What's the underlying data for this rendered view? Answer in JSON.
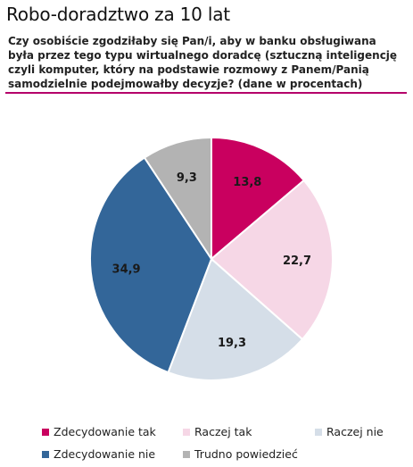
{
  "title": "Robo-doradztwo za 10 lat",
  "subtitle": "Czy osobiście zgodziłaby się Pan/i, aby w banku obsługiwana była przez tego typu wirtualnego doradcę (sztuczną inteligencję czyli komputer, który na podstawie rozmowy z Panem/Panią samodzielnie podejmowałby decyzje? (dane w procentach)",
  "chart_data": {
    "type": "pie",
    "title": "Robo-doradztwo za 10 lat",
    "categories": [
      "Zdecydowanie tak",
      "Raczej tak",
      "Raczej nie",
      "Zdecydowanie nie",
      "Trudno powiedzieć"
    ],
    "values": [
      13.8,
      22.7,
      19.3,
      34.9,
      9.3
    ],
    "labels": [
      "13,8",
      "22,7",
      "19,3",
      "34,9",
      "9,3"
    ],
    "colors": [
      "#c9005f",
      "#f6d7e6",
      "#d5dee8",
      "#336699",
      "#b3b3b3"
    ],
    "start_angle": "12 o'clock",
    "direction": "clockwise",
    "legend_position": "bottom"
  },
  "legend": [
    {
      "label": "Zdecydowanie tak",
      "color": "#c9005f"
    },
    {
      "label": "Raczej tak",
      "color": "#f6d7e6"
    },
    {
      "label": "Raczej nie",
      "color": "#d5dee8"
    },
    {
      "label": "Zdecydowanie nie",
      "color": "#336699"
    },
    {
      "label": "Trudno powiedzieć",
      "color": "#b3b3b3"
    }
  ]
}
